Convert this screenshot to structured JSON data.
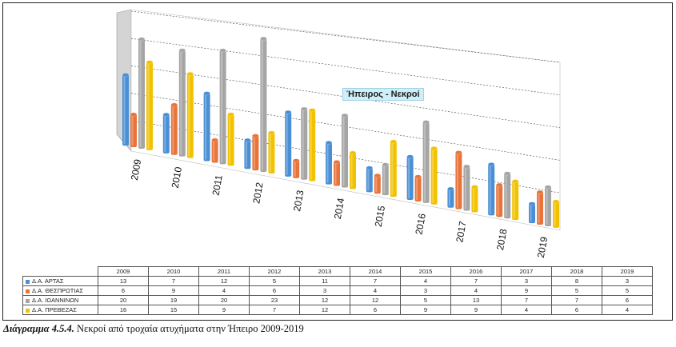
{
  "chart_data": {
    "type": "bar",
    "title": "Ήπειρος - Νεκροί",
    "categories": [
      "2009",
      "2010",
      "2011",
      "2012",
      "2013",
      "2014",
      "2015",
      "2016",
      "2017",
      "2018",
      "2019"
    ],
    "series": [
      {
        "name": "Δ.Α. ΑΡΤΑΣ",
        "color": "#4a8fd6",
        "values": [
          13,
          7,
          12,
          5,
          11,
          7,
          4,
          7,
          3,
          8,
          3
        ]
      },
      {
        "name": "Δ.Α. ΘΕΣΠΡΩΤΙΑΣ",
        "color": "#e8743b",
        "values": [
          6,
          9,
          4,
          6,
          3,
          4,
          3,
          4,
          9,
          5,
          5
        ]
      },
      {
        "name": "Δ.Α. ΙΩΑΝΝΙΝΩΝ",
        "color": "#a5a5a5",
        "values": [
          20,
          19,
          20,
          23,
          12,
          12,
          5,
          13,
          7,
          7,
          6
        ]
      },
      {
        "name": "Δ.Α. ΠΡΕΒΕΖΑΣ",
        "color": "#f2c200",
        "values": [
          16,
          15,
          9,
          7,
          12,
          6,
          9,
          9,
          4,
          6,
          4
        ]
      }
    ],
    "ylim": [
      0,
      25
    ],
    "grid": true,
    "legend": "table-below"
  },
  "table": {
    "years": [
      "2009",
      "2010",
      "2011",
      "2012",
      "2013",
      "2014",
      "2015",
      "2016",
      "2017",
      "2018",
      "2019"
    ],
    "rows": [
      {
        "label": "Δ.Α. ΑΡΤΑΣ",
        "color": "#4a8fd6",
        "values": [
          "13",
          "7",
          "12",
          "5",
          "11",
          "7",
          "4",
          "7",
          "3",
          "8",
          "3"
        ]
      },
      {
        "label": "Δ.Α. ΘΕΣΠΡΩΤΙΑΣ",
        "color": "#e8743b",
        "values": [
          "6",
          "9",
          "4",
          "6",
          "3",
          "4",
          "3",
          "4",
          "9",
          "5",
          "5"
        ]
      },
      {
        "label": "Δ.Α. ΙΩΑΝΝΙΝΩΝ",
        "color": "#a5a5a5",
        "values": [
          "20",
          "19",
          "20",
          "23",
          "12",
          "12",
          "5",
          "13",
          "7",
          "7",
          "6"
        ]
      },
      {
        "label": "Δ.Α. ΠΡΕΒΕΖΑΣ",
        "color": "#f2c200",
        "values": [
          "16",
          "15",
          "9",
          "7",
          "12",
          "6",
          "9",
          "9",
          "4",
          "6",
          "4"
        ]
      }
    ]
  },
  "caption": {
    "label": "Διάγραμμα 4.5.4.",
    "text": " Νεκροί από τροχαία ατυχήματα στην Ήπειρο 2009-2019"
  }
}
